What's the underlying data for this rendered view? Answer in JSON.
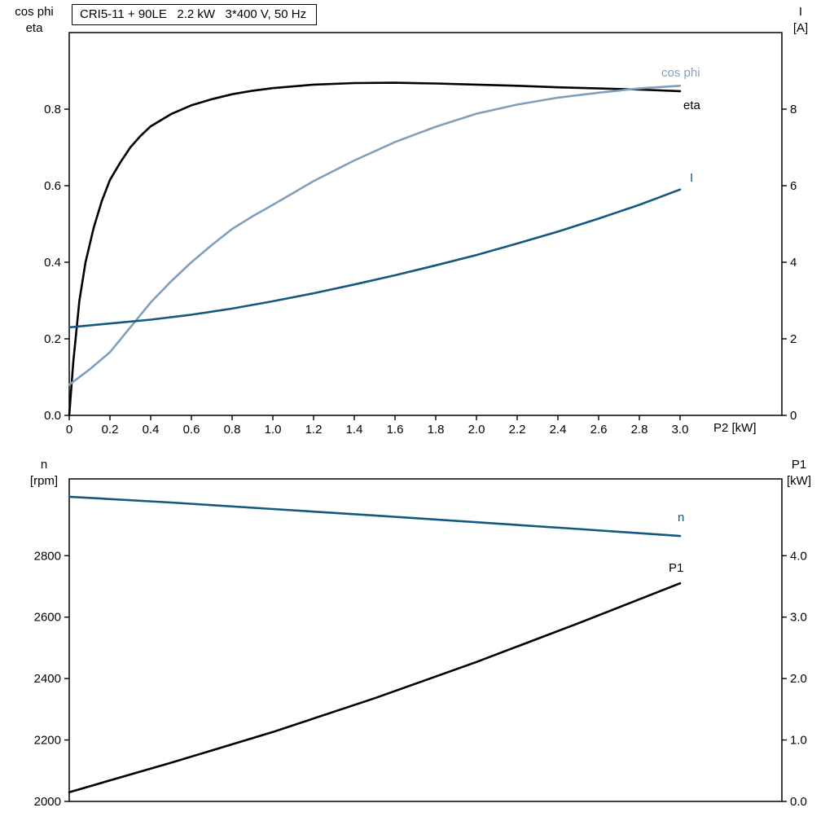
{
  "colors": {
    "black": "#000000",
    "dark_blue": "#15587f",
    "light_blue": "#7f9fbc",
    "frame": "#000000",
    "background": "#ffffff",
    "text": "#000000"
  },
  "title_box": {
    "text": "CRI5-11 + 90LE   2.2 kW   3*400 V, 50 Hz"
  },
  "chart_data": [
    {
      "type": "line",
      "title": "CRI5-11 + 90LE   2.2 kW   3*400 V, 50 Hz",
      "grid": false,
      "x_axis": {
        "label": "P2 [kW]",
        "range": [
          0,
          3.5
        ],
        "tick_values": [
          0,
          0.2,
          0.4,
          0.6,
          0.8,
          1.0,
          1.2,
          1.4,
          1.6,
          1.8,
          2.0,
          2.2,
          2.4,
          2.6,
          2.8,
          3.0
        ],
        "tick_labels": [
          "0",
          "0.2",
          "0.4",
          "0.6",
          "0.8",
          "1.0",
          "1.2",
          "1.4",
          "1.6",
          "1.8",
          "2.0",
          "2.2",
          "2.4",
          "2.6",
          "2.8",
          "3.0"
        ]
      },
      "left_axis": {
        "title_lines": [
          "cos phi",
          "eta"
        ],
        "range": [
          0,
          1.0
        ],
        "tick_values": [
          0,
          0.2,
          0.4,
          0.6,
          0.8
        ],
        "tick_labels": [
          "0.0",
          "0.2",
          "0.4",
          "0.6",
          "0.8"
        ]
      },
      "right_axis": {
        "title_lines": [
          "I",
          "[A]"
        ],
        "range": [
          0,
          10
        ],
        "tick_values": [
          0,
          2,
          4,
          6,
          8
        ],
        "tick_labels": [
          "0",
          "2",
          "4",
          "6",
          "8"
        ]
      },
      "series": [
        {
          "name": "eta",
          "label": "eta",
          "axis": "left",
          "color": "black",
          "x": [
            0,
            0.02,
            0.05,
            0.08,
            0.12,
            0.16,
            0.2,
            0.25,
            0.3,
            0.35,
            0.4,
            0.5,
            0.6,
            0.7,
            0.8,
            0.9,
            1.0,
            1.2,
            1.4,
            1.6,
            1.8,
            2.0,
            2.2,
            2.4,
            2.6,
            2.8,
            3.0
          ],
          "y": [
            0,
            0.14,
            0.3,
            0.4,
            0.49,
            0.56,
            0.615,
            0.66,
            0.7,
            0.73,
            0.755,
            0.787,
            0.81,
            0.826,
            0.839,
            0.848,
            0.855,
            0.864,
            0.868,
            0.869,
            0.867,
            0.864,
            0.861,
            0.857,
            0.854,
            0.851,
            0.847
          ]
        },
        {
          "name": "cos phi",
          "label": "cos phi",
          "axis": "left",
          "color": "light_blue",
          "x": [
            0,
            0.1,
            0.2,
            0.3,
            0.4,
            0.5,
            0.6,
            0.7,
            0.8,
            0.9,
            1.0,
            1.2,
            1.4,
            1.6,
            1.8,
            2.0,
            2.2,
            2.4,
            2.6,
            2.8,
            3.0
          ],
          "y": [
            0.08,
            0.12,
            0.165,
            0.23,
            0.295,
            0.35,
            0.4,
            0.445,
            0.487,
            0.52,
            0.55,
            0.612,
            0.666,
            0.714,
            0.754,
            0.788,
            0.812,
            0.83,
            0.843,
            0.854,
            0.861
          ]
        },
        {
          "name": "I",
          "label": "I",
          "axis": "right",
          "color": "dark_blue",
          "x": [
            0,
            0.2,
            0.4,
            0.6,
            0.8,
            1.0,
            1.2,
            1.4,
            1.6,
            1.8,
            2.0,
            2.2,
            2.4,
            2.6,
            2.8,
            3.0
          ],
          "y": [
            2.3,
            2.4,
            2.5,
            2.63,
            2.79,
            2.98,
            3.19,
            3.42,
            3.66,
            3.92,
            4.19,
            4.49,
            4.8,
            5.14,
            5.5,
            5.9
          ]
        }
      ]
    },
    {
      "type": "line",
      "title": "",
      "grid": false,
      "x_axis": {
        "label": "",
        "range": [
          0,
          3.5
        ],
        "tick_values": [],
        "tick_labels": []
      },
      "left_axis": {
        "title_lines": [
          "n",
          "[rpm]"
        ],
        "range": [
          2000,
          3050
        ],
        "tick_values": [
          2000,
          2200,
          2400,
          2600,
          2800
        ],
        "tick_labels": [
          "2000",
          "2200",
          "2400",
          "2600",
          "2800"
        ]
      },
      "right_axis": {
        "title_lines": [
          "P1",
          "[kW]"
        ],
        "range": [
          0,
          5.25
        ],
        "tick_values": [
          0,
          1,
          2,
          3,
          4
        ],
        "tick_labels": [
          "0.0",
          "1.0",
          "2.0",
          "3.0",
          "4.0"
        ]
      },
      "series": [
        {
          "name": "n",
          "label": "n",
          "axis": "left",
          "color": "dark_blue",
          "x": [
            0,
            0.5,
            1.0,
            1.5,
            2.0,
            2.5,
            3.0
          ],
          "y": [
            2992,
            2973,
            2952,
            2931,
            2909,
            2887,
            2864
          ]
        },
        {
          "name": "P1",
          "label": "P1",
          "axis": "right",
          "color": "black",
          "x": [
            0,
            0.5,
            1.0,
            1.5,
            2.0,
            2.5,
            3.0
          ],
          "y": [
            0.15,
            0.63,
            1.13,
            1.68,
            2.27,
            2.9,
            3.55
          ]
        }
      ]
    }
  ]
}
